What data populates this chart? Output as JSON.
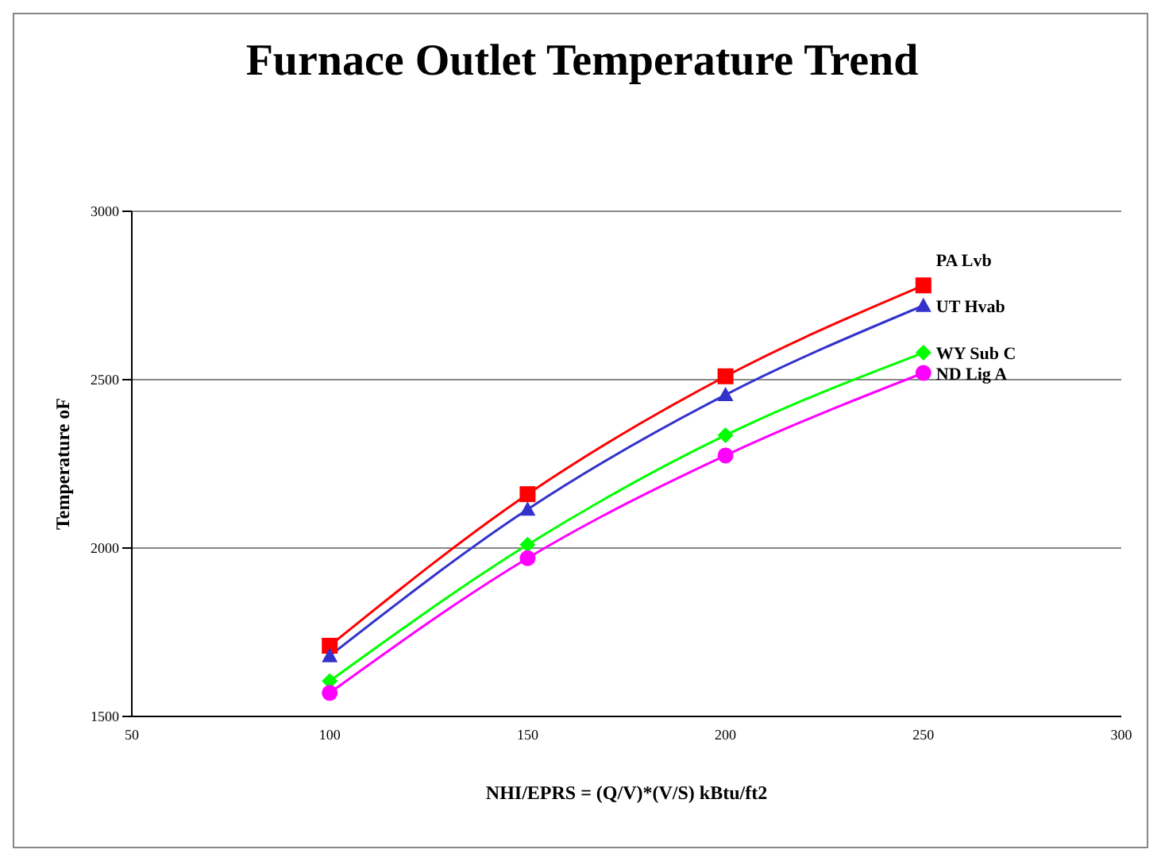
{
  "chart_data": {
    "type": "line",
    "title": "Furnace Outlet Temperature Trend",
    "xlabel": "NHI/EPRS = (Q/V)*(V/S)   kBtu/ft2",
    "ylabel": "Temperature oF",
    "x": [
      100,
      150,
      200,
      250
    ],
    "xlim": [
      50,
      300
    ],
    "xticks": [
      50,
      100,
      150,
      200,
      250,
      300
    ],
    "ylim": [
      1500,
      3000
    ],
    "yticks": [
      1500,
      2000,
      2500,
      3000
    ],
    "grid": "y",
    "legend": false,
    "series": [
      {
        "name": "PA Lvb",
        "color": "#ff0000",
        "marker": "square",
        "values": [
          1710,
          2160,
          2510,
          2780
        ]
      },
      {
        "name": "UT Hvab",
        "color": "#3333cc",
        "marker": "triangle",
        "values": [
          1680,
          2115,
          2455,
          2720
        ]
      },
      {
        "name": "WY Sub C",
        "color": "#00ff00",
        "marker": "diamond",
        "values": [
          1605,
          2010,
          2335,
          2580
        ]
      },
      {
        "name": "ND Lig A",
        "color": "#ff00ff",
        "marker": "circle",
        "values": [
          1570,
          1970,
          2275,
          2520
        ]
      }
    ]
  }
}
